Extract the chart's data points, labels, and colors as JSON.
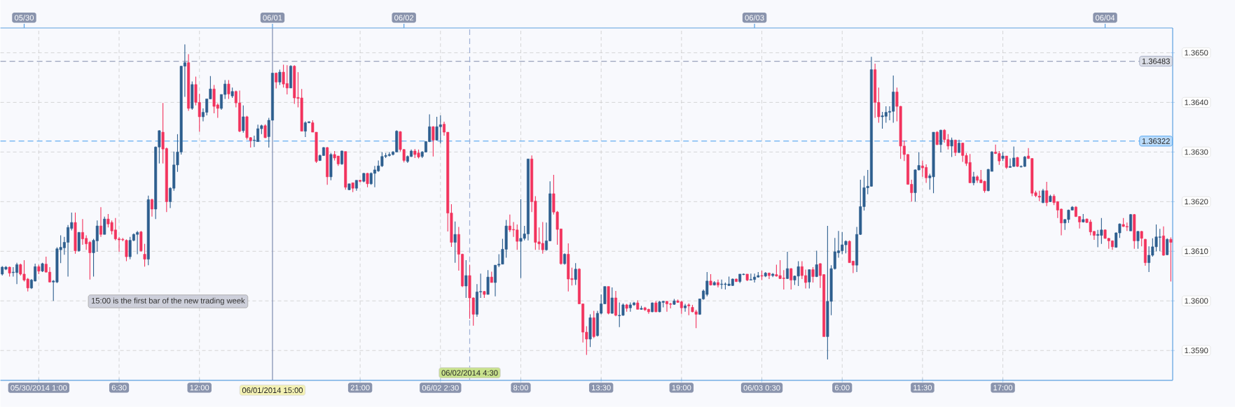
{
  "chart_data": {
    "type": "candlestick",
    "categories": [
      null,
      null,
      null,
      null,
      null,
      null,
      null,
      null,
      null,
      null,
      "05/30/2014 1:00",
      null,
      null,
      null,
      null,
      null,
      null,
      null,
      null,
      null,
      null,
      null,
      null,
      null,
      null,
      null,
      null,
      null,
      null,
      null,
      null,
      null,
      "6:30",
      null,
      null,
      null,
      null,
      null,
      null,
      null,
      null,
      null,
      null,
      null,
      null,
      null,
      null,
      null,
      null,
      null,
      null,
      null,
      null,
      null,
      "12:00",
      null,
      null,
      null,
      null,
      null,
      null,
      null,
      null,
      null,
      null,
      null,
      null,
      null,
      null,
      null,
      null,
      null,
      null,
      null,
      "06/01/2014 15:00",
      null,
      null,
      null,
      null,
      null,
      null,
      null,
      null,
      null,
      null,
      null,
      null,
      null,
      null,
      null,
      null,
      null,
      null,
      null,
      null,
      null,
      null,
      null,
      "21:00",
      null,
      null,
      null,
      null,
      null,
      null,
      null,
      null,
      null,
      null,
      null,
      null,
      null,
      null,
      null,
      null,
      null,
      null,
      null,
      null,
      null,
      "06/02 2:30",
      null,
      null,
      null,
      null,
      null,
      null,
      null,
      "06/02/2014 4:30",
      null,
      null,
      null,
      null,
      null,
      null,
      null,
      null,
      null,
      null,
      null,
      null,
      null,
      "8:00",
      null,
      null,
      null,
      null,
      null,
      null,
      null,
      null,
      null,
      null,
      null,
      null,
      null,
      null,
      null,
      null,
      null,
      null,
      null,
      null,
      null,
      "13:30",
      null,
      null,
      null,
      null,
      null,
      null,
      null,
      null,
      null,
      null,
      null,
      null,
      null,
      null,
      null,
      null,
      null,
      null,
      null,
      null,
      null,
      "19:00",
      null,
      null,
      null,
      null,
      null,
      null,
      null,
      null,
      null,
      null,
      null,
      null,
      null,
      null,
      null,
      null,
      null,
      null,
      null,
      null,
      null,
      "06/03 0:30",
      null,
      null,
      null,
      null,
      null,
      null,
      null,
      null,
      null,
      null,
      null,
      null,
      null,
      null,
      null,
      null,
      null,
      null,
      null,
      null,
      null,
      "6:00",
      null,
      null,
      null,
      null,
      null,
      null,
      null,
      null,
      null,
      null,
      null,
      null,
      null,
      null,
      null,
      null,
      null,
      null,
      null,
      null,
      null,
      "11:30",
      null,
      null,
      null,
      null,
      null,
      null,
      null,
      null,
      null,
      null,
      null,
      null,
      null,
      null,
      null,
      null,
      null,
      null,
      null,
      null,
      null,
      "17:00",
      null,
      null,
      null,
      null,
      null,
      null,
      null,
      null,
      null,
      null,
      null,
      null,
      null,
      null,
      null,
      null,
      null,
      null,
      null,
      null,
      null,
      null,
      null,
      null,
      null,
      null,
      null,
      null,
      null,
      null,
      null,
      null,
      null,
      null,
      null,
      null,
      null,
      null,
      null,
      null,
      null,
      null,
      null,
      null,
      null,
      null
    ],
    "ohlc": [
      [
        1.36054,
        1.3607,
        1.36051,
        1.36068
      ],
      [
        1.36064,
        1.3607,
        1.36062,
        1.36068
      ],
      [
        1.36068,
        1.36069,
        1.36049,
        1.36056
      ],
      [
        1.36057,
        1.36068,
        1.36049,
        1.36058
      ],
      [
        1.36057,
        1.36077,
        1.36034,
        1.36073
      ],
      [
        1.36073,
        1.36075,
        1.36051,
        1.36054
      ],
      [
        1.36054,
        1.36082,
        1.36039,
        1.36042
      ],
      [
        1.36044,
        1.36046,
        1.36019,
        1.36026
      ],
      [
        1.36026,
        1.36044,
        1.36024,
        1.36042
      ],
      [
        1.3604,
        1.36075,
        1.36039,
        1.36069
      ],
      [
        1.36069,
        1.36073,
        1.36054,
        1.3606
      ],
      [
        1.3606,
        1.36077,
        1.36058,
        1.36075
      ],
      [
        1.36074,
        1.36089,
        1.36057,
        1.36058
      ],
      [
        1.36058,
        1.36068,
        1.36037,
        1.36038
      ],
      [
        1.36038,
        1.36042,
        1.36,
        1.3604
      ],
      [
        1.36038,
        1.36108,
        1.36036,
        1.36105
      ],
      [
        1.36103,
        1.36132,
        1.36076,
        1.36108
      ],
      [
        1.36107,
        1.36129,
        1.36093,
        1.36118
      ],
      [
        1.36118,
        1.36153,
        1.36049,
        1.36148
      ],
      [
        1.36146,
        1.36178,
        1.36142,
        1.36158
      ],
      [
        1.36158,
        1.36178,
        1.36095,
        1.36101
      ],
      [
        1.36101,
        1.36139,
        1.36099,
        1.36138
      ],
      [
        1.36138,
        1.36165,
        1.36113,
        1.36125
      ],
      [
        1.36126,
        1.36132,
        1.36103,
        1.36115
      ],
      [
        1.36118,
        1.36121,
        1.36043,
        1.36097
      ],
      [
        1.36097,
        1.36125,
        1.36049,
        1.36122
      ],
      [
        1.36121,
        1.36162,
        1.36099,
        1.36151
      ],
      [
        1.36151,
        1.36189,
        1.36129,
        1.36134
      ],
      [
        1.36134,
        1.3617,
        1.36134,
        1.36165
      ],
      [
        1.36165,
        1.36175,
        1.36148,
        1.36155
      ],
      [
        1.36158,
        1.36162,
        1.36134,
        1.36141
      ],
      [
        1.36143,
        1.36167,
        1.36122,
        1.36125
      ],
      [
        1.36125,
        1.36129,
        1.36099,
        1.36123
      ],
      [
        1.36124,
        1.36127,
        1.3612,
        1.36123
      ],
      [
        1.36122,
        1.36124,
        1.3608,
        1.36089
      ],
      [
        1.36089,
        1.36129,
        1.36084,
        1.36122
      ],
      [
        1.36122,
        1.36136,
        1.3612,
        1.36134
      ],
      [
        1.36134,
        1.36141,
        1.36094,
        1.36138
      ],
      [
        1.36139,
        1.36141,
        1.36099,
        1.36101
      ],
      [
        1.36094,
        1.36115,
        1.36069,
        1.36084
      ],
      [
        1.36084,
        1.36212,
        1.36072,
        1.36204
      ],
      [
        1.36204,
        1.36206,
        1.3617,
        1.36185
      ],
      [
        1.36185,
        1.36311,
        1.36165,
        1.3631
      ],
      [
        1.3631,
        1.36344,
        1.36277,
        1.36343
      ],
      [
        1.3634,
        1.36399,
        1.36277,
        1.36306
      ],
      [
        1.36307,
        1.36309,
        1.36179,
        1.362
      ],
      [
        1.362,
        1.36229,
        1.36187,
        1.36227
      ],
      [
        1.36227,
        1.36301,
        1.36222,
        1.36274
      ],
      [
        1.36274,
        1.36336,
        1.3626,
        1.363
      ],
      [
        1.363,
        1.36473,
        1.36295,
        1.36473
      ],
      [
        1.36473,
        1.36517,
        1.36411,
        1.3648
      ],
      [
        1.3648,
        1.36497,
        1.36383,
        1.36388
      ],
      [
        1.36388,
        1.36442,
        1.36385,
        1.36436
      ],
      [
        1.36436,
        1.36452,
        1.36394,
        1.364
      ],
      [
        1.364,
        1.36417,
        1.36341,
        1.36371
      ],
      [
        1.36371,
        1.36388,
        1.36362,
        1.3638
      ],
      [
        1.3638,
        1.36407,
        1.36374,
        1.36407
      ],
      [
        1.36407,
        1.36453,
        1.36407,
        1.36427
      ],
      [
        1.36427,
        1.36435,
        1.36378,
        1.36392
      ],
      [
        1.36395,
        1.36398,
        1.36369,
        1.36388
      ],
      [
        1.36388,
        1.36416,
        1.36385,
        1.36416
      ],
      [
        1.36416,
        1.36445,
        1.36407,
        1.36437
      ],
      [
        1.36437,
        1.36445,
        1.36407,
        1.36417
      ],
      [
        1.36413,
        1.3643,
        1.36409,
        1.36422
      ],
      [
        1.36422,
        1.36424,
        1.3639,
        1.36399
      ],
      [
        1.36399,
        1.36424,
        1.3634,
        1.36342
      ],
      [
        1.36343,
        1.36394,
        1.36339,
        1.36371
      ],
      [
        1.36371,
        1.36373,
        1.36325,
        1.36329
      ],
      [
        1.36329,
        1.3633,
        1.36309,
        1.36323
      ],
      [
        1.36323,
        1.36333,
        1.3631,
        1.36324
      ],
      [
        1.36321,
        1.36355,
        1.36321,
        1.36347
      ],
      [
        1.36347,
        1.36355,
        1.36336,
        1.36353
      ],
      [
        1.36353,
        1.36356,
        1.36328,
        1.36329
      ],
      [
        1.36331,
        1.36369,
        1.36309,
        1.36364
      ],
      [
        1.36364,
        1.36459,
        1.36364,
        1.36459
      ],
      [
        1.36459,
        1.3646,
        1.36428,
        1.36441
      ],
      [
        1.36441,
        1.36466,
        1.36435,
        1.36461
      ],
      [
        1.36461,
        1.36476,
        1.3643,
        1.36437
      ],
      [
        1.36438,
        1.36475,
        1.36416,
        1.36429
      ],
      [
        1.36429,
        1.36475,
        1.36429,
        1.36473
      ],
      [
        1.36473,
        1.36475,
        1.36397,
        1.36409
      ],
      [
        1.3641,
        1.36461,
        1.3639,
        1.36408
      ],
      [
        1.36409,
        1.36427,
        1.36342,
        1.36342
      ],
      [
        1.36342,
        1.36362,
        1.3633,
        1.36359
      ],
      [
        1.36359,
        1.36362,
        1.36358,
        1.36361
      ],
      [
        1.36359,
        1.36364,
        1.3634,
        1.3634
      ],
      [
        1.3634,
        1.3634,
        1.36278,
        1.36281
      ],
      [
        1.36283,
        1.36295,
        1.36282,
        1.36293
      ],
      [
        1.36293,
        1.3631,
        1.36292,
        1.36309
      ],
      [
        1.36309,
        1.3631,
        1.36234,
        1.3625
      ],
      [
        1.3625,
        1.36298,
        1.36243,
        1.36295
      ],
      [
        1.36295,
        1.36302,
        1.36283,
        1.36288
      ],
      [
        1.36292,
        1.36292,
        1.36272,
        1.36276
      ],
      [
        1.36276,
        1.36303,
        1.36274,
        1.36302
      ],
      [
        1.36301,
        1.36301,
        1.36224,
        1.36229
      ],
      [
        1.36224,
        1.36236,
        1.36223,
        1.36236
      ],
      [
        1.36238,
        1.36238,
        1.36219,
        1.36227
      ],
      [
        1.36227,
        1.36243,
        1.36222,
        1.36243
      ],
      [
        1.36243,
        1.36244,
        1.36239,
        1.36241
      ],
      [
        1.36241,
        1.36258,
        1.36239,
        1.36257
      ],
      [
        1.36257,
        1.36258,
        1.36229,
        1.36236
      ],
      [
        1.36236,
        1.36259,
        1.36234,
        1.36257
      ],
      [
        1.36257,
        1.36272,
        1.36229,
        1.36264
      ],
      [
        1.36262,
        1.36283,
        1.3626,
        1.36272
      ],
      [
        1.36272,
        1.363,
        1.3627,
        1.36291
      ],
      [
        1.36291,
        1.36298,
        1.36288,
        1.36293
      ],
      [
        1.36293,
        1.363,
        1.36291,
        1.36295
      ],
      [
        1.36295,
        1.36302,
        1.36293,
        1.363
      ],
      [
        1.363,
        1.36344,
        1.363,
        1.36342
      ],
      [
        1.36341,
        1.36342,
        1.36301,
        1.36305
      ],
      [
        1.36305,
        1.36306,
        1.36279,
        1.36283
      ],
      [
        1.36281,
        1.36293,
        1.36278,
        1.36291
      ],
      [
        1.36291,
        1.36305,
        1.3629,
        1.36302
      ],
      [
        1.36302,
        1.36306,
        1.36288,
        1.36295
      ],
      [
        1.36298,
        1.36305,
        1.36287,
        1.3629
      ],
      [
        1.36291,
        1.36302,
        1.36288,
        1.363
      ],
      [
        1.363,
        1.36322,
        1.36299,
        1.36321
      ],
      [
        1.36321,
        1.36376,
        1.3632,
        1.36351
      ],
      [
        1.36351,
        1.36352,
        1.36291,
        1.36324
      ],
      [
        1.36324,
        1.36371,
        1.36323,
        1.36351
      ],
      [
        1.36351,
        1.36374,
        1.36317,
        1.36355
      ],
      [
        1.36356,
        1.36361,
        1.36333,
        1.3634
      ],
      [
        1.3634,
        1.3634,
        1.3614,
        1.36177
      ],
      [
        1.36177,
        1.36195,
        1.36109,
        1.36118
      ],
      [
        1.36118,
        1.3616,
        1.36077,
        1.36134
      ],
      [
        1.36134,
        1.36149,
        1.36061,
        1.36094
      ],
      [
        1.36094,
        1.36095,
        1.36028,
        1.3603
      ],
      [
        1.3603,
        1.36082,
        1.36006,
        1.36051
      ],
      [
        1.36051,
        1.36073,
        1.35964,
        1.36006
      ],
      [
        1.36006,
        1.36007,
        1.3595,
        1.35973
      ],
      [
        1.35973,
        1.36034,
        1.35968,
        1.36018
      ],
      [
        1.36018,
        1.36055,
        1.36006,
        1.36019
      ],
      [
        1.36019,
        1.3602,
        1.36006,
        1.36013
      ],
      [
        1.36013,
        1.36062,
        1.36013,
        1.36048
      ],
      [
        1.36048,
        1.36059,
        1.36037,
        1.36037
      ],
      [
        1.36037,
        1.36072,
        1.36009,
        1.36072
      ],
      [
        1.36072,
        1.36094,
        1.36068,
        1.36074
      ],
      [
        1.36074,
        1.36125,
        1.36074,
        1.36104
      ],
      [
        1.36104,
        1.36163,
        1.36087,
        1.36151
      ],
      [
        1.36151,
        1.36174,
        1.36139,
        1.36143
      ],
      [
        1.36144,
        1.36159,
        1.36129,
        1.36143
      ],
      [
        1.36143,
        1.36154,
        1.36103,
        1.3612
      ],
      [
        1.3612,
        1.36205,
        1.36046,
        1.36126
      ],
      [
        1.36126,
        1.36151,
        1.36122,
        1.36135
      ],
      [
        1.36135,
        1.36286,
        1.36122,
        1.36286
      ],
      [
        1.36286,
        1.36293,
        1.36179,
        1.362
      ],
      [
        1.36201,
        1.36211,
        1.36103,
        1.36118
      ],
      [
        1.36119,
        1.36148,
        1.36103,
        1.36115
      ],
      [
        1.36116,
        1.36159,
        1.36095,
        1.36103
      ],
      [
        1.36103,
        1.36158,
        1.36101,
        1.36121
      ],
      [
        1.36121,
        1.36241,
        1.3612,
        1.36216
      ],
      [
        1.36216,
        1.36254,
        1.36174,
        1.36179
      ],
      [
        1.36179,
        1.36181,
        1.36113,
        1.36144
      ],
      [
        1.36145,
        1.36145,
        1.36073,
        1.36075
      ],
      [
        1.36075,
        1.36096,
        1.36073,
        1.36094
      ],
      [
        1.36094,
        1.36116,
        1.36019,
        1.36044
      ],
      [
        1.36045,
        1.36067,
        1.36031,
        1.36043
      ],
      [
        1.36043,
        1.36076,
        1.36032,
        1.36064
      ],
      [
        1.36064,
        1.36066,
        1.35994,
        1.35994
      ],
      [
        1.35994,
        1.35994,
        1.35916,
        1.35937
      ],
      [
        1.35937,
        1.35949,
        1.35891,
        1.35923
      ],
      [
        1.35923,
        1.35973,
        1.35907,
        1.35966
      ],
      [
        1.35966,
        1.3598,
        1.35925,
        1.35928
      ],
      [
        1.3593,
        1.3598,
        1.35928,
        1.35975
      ],
      [
        1.35975,
        1.36013,
        1.35973,
        1.35994
      ],
      [
        1.35994,
        1.36029,
        1.35994,
        1.36029
      ],
      [
        1.36029,
        1.36029,
        1.35973,
        1.35975
      ],
      [
        1.35975,
        1.36027,
        1.35974,
        1.36006
      ],
      [
        1.36006,
        1.3602,
        1.35969,
        1.35971
      ],
      [
        1.3597,
        1.35997,
        1.35947,
        1.35971
      ],
      [
        1.35971,
        1.35995,
        1.3597,
        1.35992
      ],
      [
        1.35992,
        1.35994,
        1.35978,
        1.35985
      ],
      [
        1.35986,
        1.35997,
        1.35978,
        1.35992
      ],
      [
        1.35992,
        1.35998,
        1.3599,
        1.35996
      ],
      [
        1.35996,
        1.36001,
        1.35983,
        1.35983
      ],
      [
        1.35983,
        1.3599,
        1.35982,
        1.35985
      ],
      [
        1.35986,
        1.35988,
        1.3598,
        1.35982
      ],
      [
        1.35983,
        1.35984,
        1.35974,
        1.35978
      ],
      [
        1.35978,
        1.35997,
        1.35977,
        1.35996
      ],
      [
        1.35996,
        1.36,
        1.35977,
        1.35978
      ],
      [
        1.35978,
        1.36,
        1.35977,
        1.35998
      ],
      [
        1.35997,
        1.36,
        1.35987,
        1.35999
      ],
      [
        1.35999,
        1.36,
        1.35978,
        1.35994
      ],
      [
        1.35994,
        1.35996,
        1.35985,
        1.35993
      ],
      [
        1.35993,
        1.36004,
        1.35992,
        1.36
      ],
      [
        1.36,
        1.36003,
        1.35996,
        1.35997
      ],
      [
        1.35998,
        1.36,
        1.35974,
        1.35986
      ],
      [
        1.35986,
        1.35994,
        1.35978,
        1.3599
      ],
      [
        1.35992,
        1.35995,
        1.35971,
        1.3599
      ],
      [
        1.35987,
        1.35992,
        1.35977,
        1.35978
      ],
      [
        1.35978,
        1.35982,
        1.35945,
        1.35973
      ],
      [
        1.35973,
        1.36004,
        1.35972,
        1.36004
      ],
      [
        1.36004,
        1.36023,
        1.36002,
        1.3602
      ],
      [
        1.36013,
        1.36058,
        1.36009,
        1.3604
      ],
      [
        1.3604,
        1.36054,
        1.36031,
        1.36032
      ],
      [
        1.36032,
        1.3604,
        1.36031,
        1.36037
      ],
      [
        1.36037,
        1.36043,
        1.36027,
        1.36032
      ],
      [
        1.36033,
        1.36043,
        1.36024,
        1.36034
      ],
      [
        1.36033,
        1.36037,
        1.36023,
        1.36034
      ],
      [
        1.36031,
        1.36049,
        1.3603,
        1.36034
      ],
      [
        1.36031,
        1.36045,
        1.3603,
        1.36044
      ],
      [
        1.36044,
        1.36045,
        1.36038,
        1.36039
      ],
      [
        1.36039,
        1.36054,
        1.36036,
        1.36054
      ],
      [
        1.36053,
        1.36055,
        1.36052,
        1.36054
      ],
      [
        1.36054,
        1.36054,
        1.3604,
        1.36042
      ],
      [
        1.36042,
        1.36055,
        1.36042,
        1.36043
      ],
      [
        1.36043,
        1.36055,
        1.36037,
        1.36048
      ],
      [
        1.36048,
        1.36058,
        1.36047,
        1.36051
      ],
      [
        1.36051,
        1.36061,
        1.36042,
        1.3605
      ],
      [
        1.3605,
        1.36058,
        1.36048,
        1.36056
      ],
      [
        1.36056,
        1.36057,
        1.36044,
        1.36051
      ],
      [
        1.36051,
        1.36056,
        1.36048,
        1.36054
      ],
      [
        1.36053,
        1.36073,
        1.36049,
        1.3605
      ],
      [
        1.36051,
        1.36082,
        1.36044,
        1.36045
      ],
      [
        1.36046,
        1.36062,
        1.36023,
        1.36045
      ],
      [
        1.36045,
        1.36099,
        1.36044,
        1.36065
      ],
      [
        1.36065,
        1.36066,
        1.36023,
        1.36042
      ],
      [
        1.36042,
        1.36051,
        1.36032,
        1.3605
      ],
      [
        1.3605,
        1.3608,
        1.3603,
        1.36069
      ],
      [
        1.36069,
        1.3608,
        1.36044,
        1.36051
      ],
      [
        1.36051,
        1.36063,
        1.36025,
        1.36037
      ],
      [
        1.36038,
        1.36063,
        1.36025,
        1.36063
      ],
      [
        1.36063,
        1.36068,
        1.36037,
        1.36049
      ],
      [
        1.36049,
        1.36101,
        1.36048,
        1.36073
      ],
      [
        1.36075,
        1.36076,
        1.36026,
        1.36051
      ],
      [
        1.36053,
        1.36054,
        1.35928,
        1.35928
      ],
      [
        1.35928,
        1.36151,
        1.35882,
        1.35999
      ],
      [
        1.35999,
        1.36072,
        1.35971,
        1.36065
      ],
      [
        1.36065,
        1.36127,
        1.36063,
        1.36099
      ],
      [
        1.36097,
        1.36141,
        1.36087,
        1.36101
      ],
      [
        1.36101,
        1.36139,
        1.36094,
        1.36113
      ],
      [
        1.36113,
        1.36122,
        1.36096,
        1.3612
      ],
      [
        1.3612,
        1.36122,
        1.36077,
        1.36077
      ],
      [
        1.3608,
        1.36081,
        1.36056,
        1.36072
      ],
      [
        1.36072,
        1.36149,
        1.36058,
        1.36134
      ],
      [
        1.36134,
        1.36244,
        1.36133,
        1.3619
      ],
      [
        1.3619,
        1.36252,
        1.36182,
        1.36228
      ],
      [
        1.36228,
        1.36264,
        1.36215,
        1.36231
      ],
      [
        1.36231,
        1.36492,
        1.3623,
        1.36466
      ],
      [
        1.36466,
        1.36478,
        1.36369,
        1.364
      ],
      [
        1.364,
        1.3643,
        1.36359,
        1.36371
      ],
      [
        1.36371,
        1.36381,
        1.36347,
        1.36373
      ],
      [
        1.36372,
        1.36392,
        1.36359,
        1.3638
      ],
      [
        1.3638,
        1.36392,
        1.36364,
        1.36382
      ],
      [
        1.36382,
        1.36454,
        1.36359,
        1.36421
      ],
      [
        1.36421,
        1.3643,
        1.36362,
        1.36392
      ],
      [
        1.36392,
        1.36393,
        1.36286,
        1.36312
      ],
      [
        1.36312,
        1.36323,
        1.36282,
        1.36295
      ],
      [
        1.36295,
        1.36296,
        1.36234,
        1.36235
      ],
      [
        1.36235,
        1.36244,
        1.362,
        1.36218
      ],
      [
        1.36218,
        1.36265,
        1.362,
        1.36264
      ],
      [
        1.36264,
        1.363,
        1.36263,
        1.36273
      ],
      [
        1.36272,
        1.36283,
        1.3625,
        1.36268
      ],
      [
        1.36269,
        1.36275,
        1.36238,
        1.36248
      ],
      [
        1.36248,
        1.36256,
        1.36224,
        1.36252
      ],
      [
        1.3625,
        1.3634,
        1.36217,
        1.3634
      ],
      [
        1.3634,
        1.36342,
        1.36314,
        1.36315
      ],
      [
        1.36315,
        1.36345,
        1.36299,
        1.36344
      ],
      [
        1.36344,
        1.36346,
        1.36319,
        1.36325
      ],
      [
        1.36325,
        1.36336,
        1.36305,
        1.36312
      ],
      [
        1.36312,
        1.36329,
        1.3629,
        1.36324
      ],
      [
        1.36324,
        1.36325,
        1.36292,
        1.36299
      ],
      [
        1.36299,
        1.36325,
        1.36298,
        1.36318
      ],
      [
        1.36318,
        1.36319,
        1.3628,
        1.36293
      ],
      [
        1.36293,
        1.36298,
        1.36272,
        1.36277
      ],
      [
        1.36279,
        1.36296,
        1.36238,
        1.36238
      ],
      [
        1.36238,
        1.3626,
        1.36233,
        1.3625
      ],
      [
        1.3625,
        1.36253,
        1.36238,
        1.36243
      ],
      [
        1.36244,
        1.36264,
        1.36238,
        1.36238
      ],
      [
        1.36241,
        1.36242,
        1.36218,
        1.36222
      ],
      [
        1.36222,
        1.36266,
        1.36221,
        1.36265
      ],
      [
        1.36261,
        1.36302,
        1.36261,
        1.363
      ],
      [
        1.363,
        1.36315,
        1.36296,
        1.36297
      ],
      [
        1.36297,
        1.36302,
        1.36274,
        1.36282
      ],
      [
        1.36287,
        1.363,
        1.36282,
        1.36292
      ],
      [
        1.36292,
        1.36292,
        1.36266,
        1.36269
      ],
      [
        1.36269,
        1.36287,
        1.36268,
        1.36271
      ],
      [
        1.36271,
        1.36311,
        1.3627,
        1.36288
      ],
      [
        1.36289,
        1.3629,
        1.3627,
        1.36271
      ],
      [
        1.3627,
        1.36273,
        1.36269,
        1.36271
      ],
      [
        1.36271,
        1.36292,
        1.3627,
        1.3629
      ],
      [
        1.36292,
        1.36308,
        1.36286,
        1.36287
      ],
      [
        1.36287,
        1.36287,
        1.36211,
        1.36217
      ],
      [
        1.36218,
        1.36222,
        1.36209,
        1.36212
      ],
      [
        1.36211,
        1.36222,
        1.36201,
        1.36209
      ],
      [
        1.36198,
        1.36226,
        1.36197,
        1.36222
      ],
      [
        1.36222,
        1.3624,
        1.36191,
        1.36198
      ],
      [
        1.362,
        1.36214,
        1.36199,
        1.36211
      ],
      [
        1.36211,
        1.36215,
        1.36193,
        1.36198
      ],
      [
        1.362,
        1.36201,
        1.36167,
        1.36183
      ],
      [
        1.36185,
        1.36186,
        1.36132,
        1.36157
      ],
      [
        1.36157,
        1.36165,
        1.36143,
        1.36164
      ],
      [
        1.36164,
        1.36184,
        1.36157,
        1.36183
      ],
      [
        1.36183,
        1.36191,
        1.36182,
        1.36189
      ],
      [
        1.36189,
        1.36191,
        1.36169,
        1.3617
      ],
      [
        1.3617,
        1.36171,
        1.36146,
        1.36159
      ],
      [
        1.36159,
        1.36175,
        1.36158,
        1.36164
      ],
      [
        1.36165,
        1.36166,
        1.36157,
        1.36158
      ],
      [
        1.36159,
        1.36164,
        1.36132,
        1.36139
      ],
      [
        1.3614,
        1.36141,
        1.36123,
        1.36132
      ],
      [
        1.36132,
        1.36143,
        1.36108,
        1.36134
      ],
      [
        1.36132,
        1.36167,
        1.36115,
        1.36143
      ],
      [
        1.36143,
        1.36144,
        1.36125,
        1.36126
      ],
      [
        1.36126,
        1.36127,
        1.36105,
        1.36121
      ],
      [
        1.36121,
        1.36122,
        1.36103,
        1.36109
      ],
      [
        1.36108,
        1.36138,
        1.36107,
        1.36137
      ],
      [
        1.36137,
        1.36156,
        1.36127,
        1.36155
      ],
      [
        1.36154,
        1.36167,
        1.36149,
        1.3615
      ],
      [
        1.3615,
        1.36158,
        1.36141,
        1.36149
      ],
      [
        1.36141,
        1.36175,
        1.36141,
        1.36174
      ],
      [
        1.36174,
        1.36175,
        1.36105,
        1.36121
      ],
      [
        1.36121,
        1.36141,
        1.36105,
        1.3614
      ],
      [
        1.3614,
        1.36141,
        1.3611,
        1.36126
      ],
      [
        1.36124,
        1.36125,
        1.36071,
        1.36077
      ],
      [
        1.36077,
        1.3611,
        1.36058,
        1.36092
      ],
      [
        1.36092,
        1.36126,
        1.36089,
        1.36109
      ],
      [
        1.36109,
        1.36154,
        1.361,
        1.36129
      ],
      [
        1.36128,
        1.36145,
        1.361,
        1.36129
      ],
      [
        1.36131,
        1.3615,
        1.36091,
        1.36092
      ],
      [
        1.36093,
        1.36126,
        1.36092,
        1.36124
      ],
      [
        1.36124,
        1.36128,
        1.36039,
        1.36118
      ]
    ],
    "colors": [
      "#2d5e8e",
      "#2d5e8e",
      "#f2335d",
      "#2d5e8e",
      "#2d5e8e",
      "#f2335d",
      "#f2335d",
      "#f2335d",
      "#2d5e8e",
      "#2d5e8e",
      "#f2335d",
      "#2d5e8e",
      "#f2335d",
      "#f2335d",
      "#2d5e8e",
      "#2d5e8e",
      "#2d5e8e",
      "#2d5e8e",
      "#2d5e8e",
      "#2d5e8e",
      "#f2335d",
      "#2d5e8e",
      "#f2335d",
      "#f2335d",
      "#f2335d",
      "#2d5e8e",
      "#2d5e8e",
      "#f2335d",
      "#2d5e8e",
      "#f2335d",
      "#f2335d",
      "#f2335d",
      "#f2335d",
      "#f2335d",
      "#f2335d",
      "#2d5e8e",
      "#2d5e8e",
      "#2d5e8e",
      "#f2335d",
      "#f2335d",
      "#2d5e8e",
      "#f2335d",
      "#2d5e8e",
      "#2d5e8e",
      "#f2335d",
      "#f2335d",
      "#2d5e8e",
      "#2d5e8e",
      "#2d5e8e",
      "#2d5e8e",
      "#2d5e8e",
      "#f2335d",
      "#2d5e8e",
      "#f2335d",
      "#f2335d",
      "#2d5e8e",
      "#2d5e8e",
      "#2d5e8e",
      "#f2335d",
      "#f2335d",
      "#2d5e8e",
      "#2d5e8e",
      "#f2335d",
      "#2d5e8e",
      "#f2335d",
      "#f2335d",
      "#2d5e8e",
      "#f2335d",
      "#f2335d",
      "#2d5e8e",
      "#2d5e8e",
      "#2d5e8e",
      "#f2335d",
      "#2d5e8e",
      "#2d5e8e",
      "#f2335d",
      "#2d5e8e",
      "#f2335d",
      "#f2335d",
      "#2d5e8e",
      "#f2335d",
      "#f2335d",
      "#f2335d",
      "#2d5e8e",
      "#2d5e8e",
      "#f2335d",
      "#f2335d",
      "#2d5e8e",
      "#2d5e8e",
      "#f2335d",
      "#2d5e8e",
      "#f2335d",
      "#f2335d",
      "#2d5e8e",
      "#f2335d",
      "#2d5e8e",
      "#f2335d",
      "#2d5e8e",
      "#f2335d",
      "#2d5e8e",
      "#f2335d",
      "#2d5e8e",
      "#2d5e8e",
      "#2d5e8e",
      "#2d5e8e",
      "#2d5e8e",
      "#2d5e8e",
      "#2d5e8e",
      "#2d5e8e",
      "#f2335d",
      "#f2335d",
      "#2d5e8e",
      "#2d5e8e",
      "#f2335d",
      "#f2335d",
      "#2d5e8e",
      "#2d5e8e",
      "#2d5e8e",
      "#f2335d",
      "#2d5e8e",
      "#2d5e8e",
      "#f2335d",
      "#f2335d",
      "#f2335d",
      "#2d5e8e",
      "#f2335d",
      "#f2335d",
      "#2d5e8e",
      "#f2335d",
      "#f2335d",
      "#2d5e8e",
      "#2d5e8e",
      "#f2335d",
      "#2d5e8e",
      "#f2335d",
      "#2d5e8e",
      "#2d5e8e",
      "#2d5e8e",
      "#2d5e8e",
      "#f2335d",
      "#f2335d",
      "#f2335d",
      "#2d5e8e",
      "#2d5e8e",
      "#2d5e8e",
      "#f2335d",
      "#f2335d",
      "#f2335d",
      "#f2335d",
      "#2d5e8e",
      "#2d5e8e",
      "#f2335d",
      "#f2335d",
      "#f2335d",
      "#2d5e8e",
      "#f2335d",
      "#f2335d",
      "#2d5e8e",
      "#f2335d",
      "#f2335d",
      "#f2335d",
      "#2d5e8e",
      "#f2335d",
      "#2d5e8e",
      "#2d5e8e",
      "#2d5e8e",
      "#f2335d",
      "#2d5e8e",
      "#f2335d",
      "#2d5e8e",
      "#2d5e8e",
      "#f2335d",
      "#2d5e8e",
      "#2d5e8e",
      "#f2335d",
      "#2d5e8e",
      "#f2335d",
      "#f2335d",
      "#2d5e8e",
      "#f2335d",
      "#2d5e8e",
      "#2d5e8e",
      "#f2335d",
      "#f2335d",
      "#2d5e8e",
      "#f2335d",
      "#f2335d",
      "#2d5e8e",
      "#f2335d",
      "#f2335d",
      "#f2335d",
      "#2d5e8e",
      "#2d5e8e",
      "#2d5e8e",
      "#f2335d",
      "#2d5e8e",
      "#f2335d",
      "#2d5e8e",
      "#2d5e8e",
      "#2d5e8e",
      "#2d5e8e",
      "#f2335d",
      "#2d5e8e",
      "#2d5e8e",
      "#f2335d",
      "#2d5e8e",
      "#2d5e8e",
      "#2d5e8e",
      "#f2335d",
      "#2d5e8e",
      "#f2335d",
      "#2d5e8e",
      "#f2335d",
      "#f2335d",
      "#f2335d",
      "#2d5e8e",
      "#f2335d",
      "#2d5e8e",
      "#2d5e8e",
      "#f2335d",
      "#f2335d",
      "#2d5e8e",
      "#f2335d",
      "#2d5e8e",
      "#f2335d",
      "#f2335d",
      "#2d5e8e",
      "#2d5e8e",
      "#2d5e8e",
      "#2d5e8e",
      "#2d5e8e",
      "#2d5e8e",
      "#f2335d",
      "#f2335d",
      "#2d5e8e",
      "#2d5e8e",
      "#2d5e8e",
      "#2d5e8e",
      "#2d5e8e",
      "#f2335d",
      "#f2335d",
      "#2d5e8e",
      "#2d5e8e",
      "#2d5e8e",
      "#2d5e8e",
      "#f2335d",
      "#f2335d",
      "#f2335d",
      "#f2335d",
      "#f2335d",
      "#2d5e8e",
      "#2d5e8e",
      "#f2335d",
      "#f2335d",
      "#2d5e8e",
      "#2d5e8e",
      "#f2335d",
      "#2d5e8e",
      "#f2335d",
      "#f2335d",
      "#2d5e8e",
      "#f2335d",
      "#2d5e8e",
      "#f2335d",
      "#f2335d",
      "#f2335d",
      "#2d5e8e",
      "#f2335d",
      "#f2335d",
      "#f2335d",
      "#2d5e8e",
      "#2d5e8e",
      "#f2335d",
      "#f2335d",
      "#2d5e8e",
      "#f2335d",
      "#2d5e8e",
      "#2d5e8e",
      "#f2335d",
      "#2d5e8e",
      "#2d5e8e",
      "#f2335d",
      "#f2335d",
      "#f2335d",
      "#f2335d",
      "#2d5e8e",
      "#f2335d",
      "#2d5e8e",
      "#f2335d",
      "#f2335d",
      "#f2335d",
      "#2d5e8e",
      "#2d5e8e",
      "#2d5e8e",
      "#f2335d",
      "#f2335d",
      "#2d5e8e",
      "#f2335d",
      "#f2335d",
      "#f2335d",
      "#2d5e8e",
      "#2d5e8e",
      "#f2335d",
      "#f2335d",
      "#f2335d",
      "#2d5e8e",
      "#2d5e8e",
      "#f2335d",
      "#f2335d",
      "#2d5e8e",
      "#f2335d",
      "#2d5e8e",
      "#f2335d",
      "#f2335d",
      "#2d5e8e",
      "#2d5e8e",
      "#2d5e8e",
      "#2d5e8e",
      "#f2335d",
      "#2d5e8e",
      "#f2335d"
    ],
    "ylim": [
      1.3584,
      1.3655
    ],
    "yticks": [
      {
        "value": 1.359,
        "label": "1.3590"
      },
      {
        "value": 1.36,
        "label": "1.3600"
      },
      {
        "value": 1.361,
        "label": "1.3610"
      },
      {
        "value": 1.362,
        "label": "1.3620"
      },
      {
        "value": 1.363,
        "label": "1.3630"
      },
      {
        "value": 1.364,
        "label": "1.3640"
      },
      {
        "value": 1.365,
        "label": "1.3650"
      }
    ],
    "grid": true,
    "ref_lines": [
      {
        "axis": "y",
        "value": 1.36483,
        "label": "1.36483",
        "color": "#9aa3bd",
        "line_style": "dashed"
      },
      {
        "axis": "y",
        "value": 1.36322,
        "label": "1.36322",
        "color": "#3f9cf0",
        "line_style": "dashed"
      },
      {
        "axis": "x",
        "value": "06/01/2014 15:00",
        "color": "#7d8bb0",
        "line_style": "solid"
      },
      {
        "axis": "x",
        "value": "06/02/2014 4:30",
        "color": "#9fb0d6",
        "line_style": "dashed"
      }
    ],
    "annotations": [
      "15:00 is the first bar of the new trading week",
      "05/30",
      "06/01",
      "06/02",
      "06/03",
      "06/04"
    ]
  }
}
